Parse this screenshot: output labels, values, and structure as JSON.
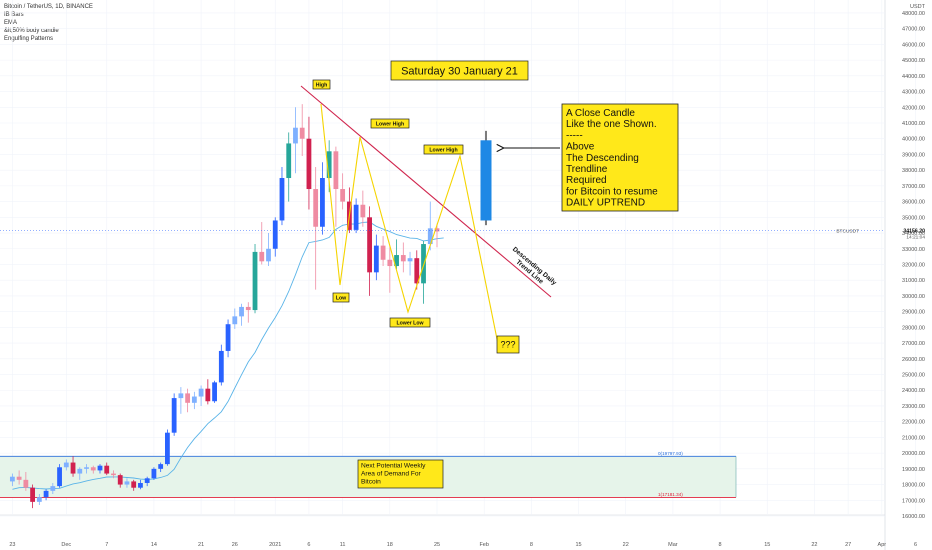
{
  "legend": {
    "symbol": "Bitcoin / TetherUS, 1D, BINANCE",
    "studies": [
      "IB Bars",
      "EMA",
      "&lt;50% body candle",
      "Engulfing Patterns"
    ]
  },
  "currency": "USDT",
  "price_tag": {
    "symbol": "BTCUSDT",
    "price": "34156.20",
    "countdown": "14:21:04"
  },
  "colors": {
    "up": "#2962ff",
    "down": "#d1214f",
    "green_candle": "#26a69a",
    "ema": "#5ab4e8",
    "zigzag": "#f5d400",
    "trendline": "#d0264e",
    "note_bg": "#ffe81a"
  },
  "chart_data": {
    "type": "candlestick",
    "title": "",
    "y_axis": {
      "min": 15500,
      "max": 48500,
      "step": 1000,
      "ticks": [
        16000,
        17000,
        18000,
        19000,
        20000,
        21000,
        22000,
        23000,
        24000,
        25000,
        26000,
        27000,
        28000,
        29000,
        30000,
        31000,
        32000,
        33000,
        34000,
        35000,
        36000,
        37000,
        38000,
        39000,
        40000,
        41000,
        42000,
        43000,
        44000,
        45000,
        46000,
        47000,
        48000
      ]
    },
    "x_axis": {
      "ticks": [
        {
          "label": "23",
          "day": -8
        },
        {
          "label": "Dec",
          "day": 0
        },
        {
          "label": "7",
          "day": 6
        },
        {
          "label": "14",
          "day": 13
        },
        {
          "label": "21",
          "day": 20
        },
        {
          "label": "26",
          "day": 25
        },
        {
          "label": "2021",
          "day": 31
        },
        {
          "label": "6",
          "day": 36
        },
        {
          "label": "11",
          "day": 41
        },
        {
          "label": "18",
          "day": 48
        },
        {
          "label": "25",
          "day": 55
        },
        {
          "label": "Feb",
          "day": 62
        },
        {
          "label": "8",
          "day": 69
        },
        {
          "label": "15",
          "day": 76
        },
        {
          "label": "22",
          "day": 83
        },
        {
          "label": "Mar",
          "day": 90
        },
        {
          "label": "8",
          "day": 97
        },
        {
          "label": "15",
          "day": 104
        },
        {
          "label": "22",
          "day": 111
        },
        {
          "label": "27",
          "day": 116
        },
        {
          "label": "Apr",
          "day": 121
        },
        {
          "label": "6",
          "day": 126
        }
      ]
    },
    "candles": [
      [
        18200,
        18700,
        17900,
        18500
      ],
      [
        18500,
        18900,
        18000,
        18300
      ],
      [
        18300,
        18800,
        17600,
        17800
      ],
      [
        17800,
        18000,
        16500,
        16900
      ],
      [
        16900,
        17400,
        16700,
        17200
      ],
      [
        17200,
        17700,
        17000,
        17600
      ],
      [
        17600,
        18100,
        17400,
        17900
      ],
      [
        17900,
        19300,
        17800,
        19100
      ],
      [
        19100,
        19600,
        18900,
        19400
      ],
      [
        19400,
        19800,
        18500,
        18700
      ],
      [
        18700,
        19100,
        18300,
        19000
      ],
      [
        19000,
        19300,
        18700,
        19100
      ],
      [
        19100,
        19200,
        18700,
        18900
      ],
      [
        18900,
        19300,
        18700,
        19200
      ],
      [
        19200,
        19400,
        18600,
        18700
      ],
      [
        18700,
        18900,
        18400,
        18600
      ],
      [
        18600,
        18700,
        17800,
        18000
      ],
      [
        18000,
        18400,
        17800,
        18200
      ],
      [
        18200,
        18300,
        17600,
        17800
      ],
      [
        17800,
        18300,
        17700,
        18100
      ],
      [
        18100,
        18500,
        17900,
        18400
      ],
      [
        18400,
        19100,
        18300,
        19000
      ],
      [
        19000,
        19400,
        18800,
        19300
      ],
      [
        19300,
        21500,
        19200,
        21300
      ],
      [
        21300,
        23800,
        21100,
        23500
      ],
      [
        23500,
        24200,
        22500,
        23800
      ],
      [
        23800,
        24100,
        22600,
        23200
      ],
      [
        23200,
        23900,
        22800,
        23600
      ],
      [
        23600,
        24300,
        23000,
        24100
      ],
      [
        24100,
        24700,
        23100,
        23300
      ],
      [
        23300,
        24600,
        23200,
        24500
      ],
      [
        24500,
        26900,
        24300,
        26500
      ],
      [
        26500,
        28500,
        26100,
        28200
      ],
      [
        28200,
        29200,
        27900,
        28700
      ],
      [
        28700,
        29500,
        28100,
        29300
      ],
      [
        29300,
        29600,
        28300,
        29100
      ],
      [
        29100,
        33300,
        28900,
        32800
      ],
      [
        32800,
        34700,
        32000,
        32200
      ],
      [
        32200,
        34000,
        31900,
        33000
      ],
      [
        33000,
        35000,
        32500,
        34800
      ],
      [
        34800,
        38200,
        34500,
        37500
      ],
      [
        37500,
        40400,
        36000,
        39700
      ],
      [
        39700,
        42000,
        37800,
        40700
      ],
      [
        40700,
        42200,
        38900,
        40000
      ],
      [
        40000,
        41400,
        35500,
        36800
      ],
      [
        36800,
        38200,
        30400,
        34400
      ],
      [
        34400,
        38500,
        33900,
        37500
      ],
      [
        37500,
        39900,
        36600,
        39200
      ],
      [
        39200,
        39500,
        34400,
        36800
      ],
      [
        36800,
        37800,
        35500,
        36000
      ],
      [
        36000,
        36900,
        34000,
        34200
      ],
      [
        34200,
        36200,
        34000,
        35800
      ],
      [
        35800,
        36700,
        34400,
        35000
      ],
      [
        35000,
        35700,
        30000,
        31500
      ],
      [
        31500,
        33900,
        31000,
        33200
      ],
      [
        33200,
        33800,
        31900,
        32300
      ],
      [
        32300,
        33200,
        30200,
        31900
      ],
      [
        31900,
        33600,
        31700,
        32600
      ],
      [
        32600,
        33400,
        31500,
        32200
      ],
      [
        32200,
        32800,
        31300,
        32400
      ],
      [
        32400,
        32900,
        30400,
        30800
      ],
      [
        30800,
        33500,
        29500,
        33300
      ],
      [
        33300,
        36000,
        32900,
        34300
      ],
      [
        34300,
        34600,
        33100,
        34100
      ]
    ],
    "projected_candle": {
      "open": 34800,
      "high": 40500,
      "low": 34500,
      "close": 39900
    },
    "ema": [
      17700,
      17800,
      17820,
      17780,
      17740,
      17720,
      17740,
      17760,
      17900,
      18040,
      18120,
      18230,
      18330,
      18400,
      18480,
      18490,
      18490,
      18450,
      18420,
      18350,
      18320,
      18360,
      18450,
      18580,
      18970,
      19700,
      20360,
      20920,
      21380,
      21870,
      22240,
      22630,
      23290,
      24140,
      24980,
      25800,
      26400,
      27230,
      27960,
      28620,
      29380,
      30280,
      31350,
      32480,
      33390,
      33470,
      33560,
      33720,
      34230,
      34490,
      34580,
      34570,
      34680,
      34700,
      34430,
      34250,
      34090,
      33900,
      33790,
      33680,
      33660,
      33500,
      33560,
      33640,
      33690
    ]
  },
  "trendline_label": "Descending Daily\nTrend Line",
  "annotations": {
    "date_box": "Saturday 30 January 21",
    "high": "High",
    "lower_high_1": "Lower High",
    "lower_high_2": "Lower High",
    "low": "Low",
    "lower_low": "Lower Low",
    "question": "???",
    "note_lines": [
      "A Close Candle",
      "Like the one Shown.",
      "-----",
      "Above",
      "The Descending",
      "Trendline",
      "Required",
      "for Bitcoin to resume",
      "DAILY UPTREND"
    ],
    "demand_box_lines": [
      "Next Potential Weekly",
      "Area of Demand For",
      "Bitcoin"
    ],
    "zone_upper_label": "0(19797.93)",
    "zone_lower_label": "1(17181.34)"
  }
}
